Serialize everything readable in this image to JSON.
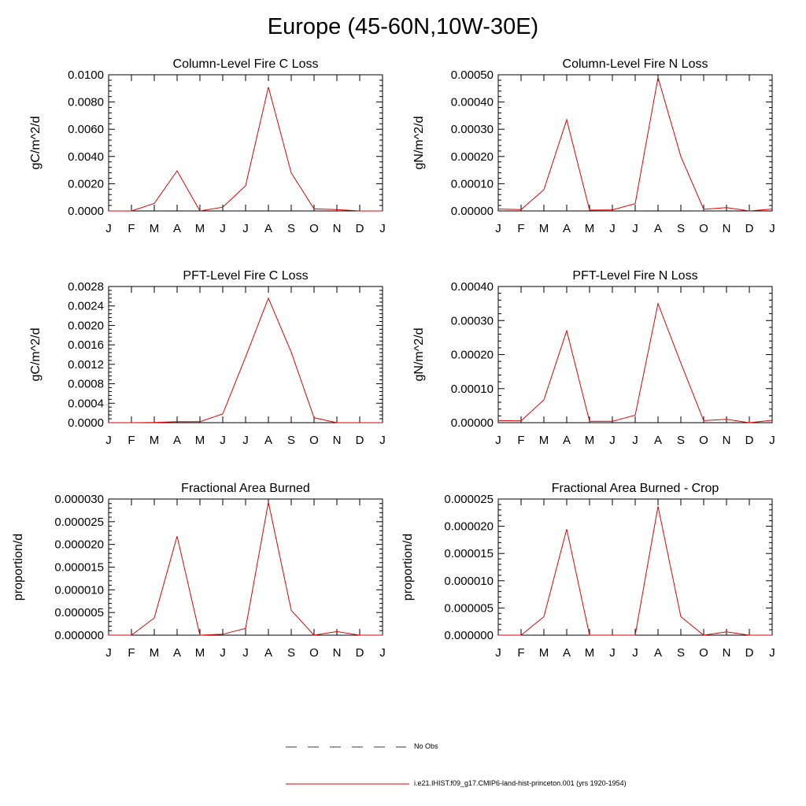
{
  "title": "Europe (45-60N,10W-30E)",
  "months": [
    "J",
    "F",
    "M",
    "A",
    "M",
    "J",
    "J",
    "A",
    "S",
    "O",
    "N",
    "D",
    "J"
  ],
  "legend": [
    {
      "label": "No Obs",
      "color": "#000000",
      "style": "dashed"
    },
    {
      "label": "i.e21.IHIST.f09_g17.CMIP6-land-hist-princeton.001 (yrs 1920-1954)",
      "color": "#e00000",
      "style": "solid"
    }
  ],
  "chart_data": [
    {
      "type": "line",
      "title": "Column-Level Fire C Loss",
      "ylabel": "gC/m^2/d",
      "ylim": [
        0,
        0.01
      ],
      "yticks": [
        "0.0000",
        "0.0020",
        "0.0040",
        "0.0060",
        "0.0080",
        "0.0100"
      ],
      "series": [
        {
          "color": "#e00000",
          "values": [
            0.0,
            0.0,
            0.00055,
            0.00295,
            0.0,
            0.00028,
            0.00185,
            0.0091,
            0.0028,
            0.00015,
            0.0001,
            0.0,
            0.0
          ]
        }
      ]
    },
    {
      "type": "line",
      "title": "Column-Level Fire N Loss",
      "ylabel": "gN/m^2/d",
      "ylim": [
        0,
        0.0005
      ],
      "yticks": [
        "0.00000",
        "0.00010",
        "0.00020",
        "0.00030",
        "0.00040",
        "0.00050"
      ],
      "series": [
        {
          "color": "#e00000",
          "values": [
            7e-06,
            5e-06,
            7.8e-05,
            0.000335,
            3e-06,
            4e-06,
            2.7e-05,
            0.00049,
            0.0002,
            6e-06,
            1.2e-05,
            0.0,
            7e-06
          ]
        }
      ]
    },
    {
      "type": "line",
      "title": "PFT-Level Fire C Loss",
      "ylabel": "gC/m^2/d",
      "ylim": [
        0,
        0.0028
      ],
      "yticks": [
        "0.0000",
        "0.0004",
        "0.0008",
        "0.0012",
        "0.0016",
        "0.0020",
        "0.0024",
        "0.0028"
      ],
      "series": [
        {
          "color": "#e00000",
          "values": [
            0.0,
            0.0,
            5e-06,
            2e-05,
            2e-05,
            0.00018,
            0.00135,
            0.00256,
            0.00145,
            0.0001,
            0.0,
            0.0,
            0.0
          ]
        }
      ]
    },
    {
      "type": "line",
      "title": "PFT-Level Fire N Loss",
      "ylabel": "gN/m^2/d",
      "ylim": [
        0,
        0.0004
      ],
      "yticks": [
        "0.00000",
        "0.00010",
        "0.00020",
        "0.00030",
        "0.00040"
      ],
      "series": [
        {
          "color": "#e00000",
          "values": [
            6e-06,
            5e-06,
            6.7e-05,
            0.00027,
            4e-06,
            4e-06,
            2.2e-05,
            0.00035,
            0.000175,
            6e-06,
            1e-05,
            0.0,
            7e-06
          ]
        }
      ]
    },
    {
      "type": "line",
      "title": "Fractional Area Burned",
      "ylabel": "proportion/d",
      "ylim": [
        0,
        3e-05
      ],
      "yticks": [
        "0.000000",
        "0.000005",
        "0.000010",
        "0.000015",
        "0.000020",
        "0.000025",
        "0.000030"
      ],
      "series": [
        {
          "color": "#e00000",
          "values": [
            0.0,
            0.0,
            3.8e-06,
            2.18e-05,
            0.0,
            2e-07,
            1.5e-06,
            2.93e-05,
            5.5e-06,
            0.0,
            8e-07,
            0.0,
            0.0
          ]
        }
      ]
    },
    {
      "type": "line",
      "title": "Fractional Area Burned - Crop",
      "ylabel": "proportion/d",
      "ylim": [
        0,
        2.8e-05
      ],
      "yticks": [
        "0.000000",
        "0.000005",
        "0.000010",
        "0.000015",
        "0.000020",
        "0.000025"
      ],
      "series": [
        {
          "color": "#e00000",
          "values": [
            0.0,
            0.0,
            3.8e-06,
            2.18e-05,
            0.0,
            0.0,
            0.0,
            2.65e-05,
            3.8e-06,
            0.0,
            7e-07,
            0.0,
            0.0
          ]
        }
      ]
    }
  ]
}
